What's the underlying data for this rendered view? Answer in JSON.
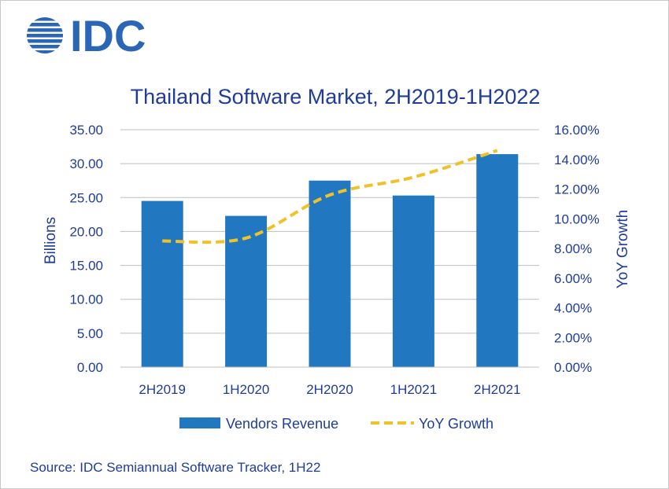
{
  "logo": {
    "text": "IDC",
    "color": "#2a66b5"
  },
  "source": "Source: IDC Semiannual Software Tracker, 1H22",
  "colors": {
    "bar": "#2178c0",
    "line": "#f0c22a",
    "text": "#1f3c99",
    "axis": "#bfbfbf"
  },
  "chart_data": {
    "type": "bar",
    "title": "Thailand Software Market, 2H2019-1H2022",
    "categories": [
      "2H2019",
      "1H2020",
      "2H2020",
      "1H2021",
      "2H2021"
    ],
    "series": [
      {
        "name": "Vendors Revenue",
        "type": "bar",
        "axis": "left",
        "values": [
          24.5,
          22.3,
          27.5,
          25.3,
          31.4
        ]
      },
      {
        "name": "YoY Growth",
        "type": "line",
        "style": "dashed",
        "axis": "right",
        "values": [
          8.5,
          8.7,
          11.6,
          12.8,
          14.6
        ]
      }
    ],
    "ylabel": "Billions",
    "y2label": "YoY Growth",
    "ylim": [
      0,
      35
    ],
    "y2lim": [
      0,
      16
    ],
    "yticks": [
      "0.00",
      "5.00",
      "10.00",
      "15.00",
      "20.00",
      "25.00",
      "30.00",
      "35.00"
    ],
    "y2ticks": [
      "0.00%",
      "2.00%",
      "4.00%",
      "6.00%",
      "8.00%",
      "10.00%",
      "12.00%",
      "14.00%",
      "16.00%"
    ],
    "legend": "bottom"
  }
}
